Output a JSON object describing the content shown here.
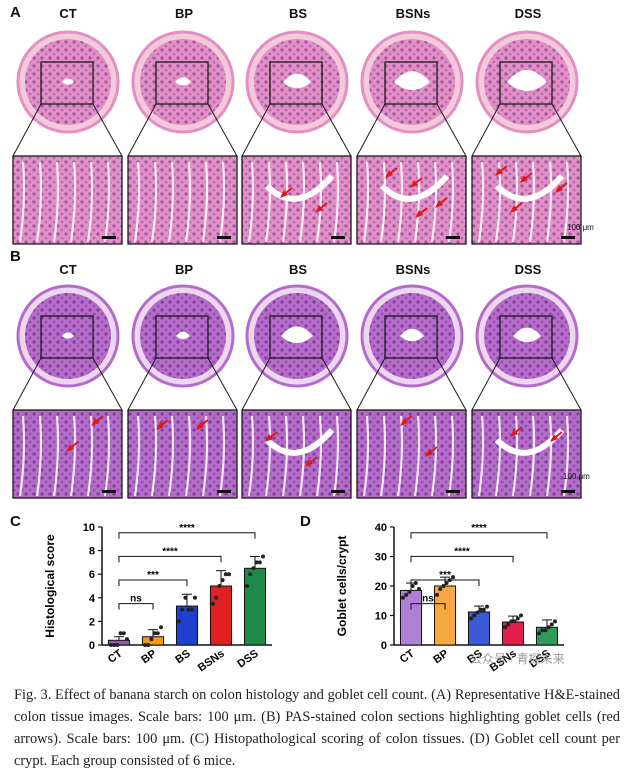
{
  "figure": {
    "panel_labels": [
      "A",
      "B",
      "C",
      "D"
    ],
    "groups": [
      "CT",
      "BP",
      "BS",
      "BSNs",
      "DSS"
    ],
    "scale_label": "100 μm",
    "colors": {
      "he_bg": "#f3c9dc",
      "he_tissue": "#e38fc4",
      "he_dark": "#7b3fa0",
      "pas_bg": "#ecd7ee",
      "pas_tissue": "#b46bc9",
      "pas_dark": "#6d2c86",
      "arrow": "#e01818",
      "zoom_frame": "#1a1a1a"
    }
  },
  "watermark": "公众号 · 青探未来",
  "caption": {
    "text": "Fig. 3. Effect of banana starch on colon histology and goblet cell count. (A) Representative H&E-stained colon tissue images. Scale bars: 100 μm. (B) PAS-stained colon sections highlighting goblet cells (red arrows). Scale bars: 100 μm. (C) Histopathological scoring of colon tissues. (D) Goblet cell count per crypt. Each group consisted of 6 mice."
  },
  "chart_data": [
    {
      "type": "bar",
      "panel": "C",
      "ylabel": "Histological score",
      "categories": [
        "CT",
        "BP",
        "BS",
        "BSNs",
        "DSS"
      ],
      "values": [
        0.4,
        0.7,
        3.3,
        5.0,
        6.5
      ],
      "errors": [
        0.3,
        0.6,
        1.0,
        1.3,
        1.0
      ],
      "bar_colors": [
        "#9b59b6",
        "#f39c12",
        "#1f3fcf",
        "#e02020",
        "#1e8a4a"
      ],
      "points": [
        [
          0,
          0,
          0,
          1,
          1,
          0.5
        ],
        [
          0,
          0,
          0.5,
          1,
          1,
          1.5
        ],
        [
          2,
          3,
          4,
          3,
          3,
          4
        ],
        [
          3.5,
          4,
          5,
          5.5,
          6,
          6
        ],
        [
          5,
          6,
          6.5,
          7,
          7,
          7.5
        ]
      ],
      "ylim": [
        0,
        10
      ],
      "yticks": [
        0,
        2,
        4,
        6,
        8,
        10
      ],
      "significance": [
        {
          "from": "CT",
          "to": "BP",
          "label": "ns"
        },
        {
          "from": "CT",
          "to": "BS",
          "label": "***"
        },
        {
          "from": "CT",
          "to": "BSNs",
          "label": "****"
        },
        {
          "from": "CT",
          "to": "DSS",
          "label": "****"
        }
      ]
    },
    {
      "type": "bar",
      "panel": "D",
      "ylabel": "Goblet cells/crypt",
      "categories": [
        "CT",
        "BP",
        "BS",
        "BSNs",
        "DSS"
      ],
      "values": [
        18.5,
        20.0,
        11.2,
        7.8,
        6.0
      ],
      "errors": [
        2.5,
        3.0,
        2.0,
        2.0,
        2.5
      ],
      "bar_colors": [
        "#b07fd6",
        "#f5a742",
        "#3c5ad8",
        "#e0204a",
        "#2e9a5e"
      ],
      "points": [
        [
          16,
          17,
          18,
          20,
          21,
          19
        ],
        [
          17,
          19,
          20,
          21,
          22,
          23
        ],
        [
          9,
          10,
          11,
          12,
          12,
          13
        ],
        [
          6,
          7,
          8,
          8,
          9,
          10
        ],
        [
          4,
          5,
          5,
          6,
          7,
          8
        ]
      ],
      "ylim": [
        0,
        40
      ],
      "yticks": [
        0,
        10,
        20,
        30,
        40
      ],
      "significance": [
        {
          "from": "CT",
          "to": "BP",
          "label": "ns"
        },
        {
          "from": "CT",
          "to": "BS",
          "label": "***"
        },
        {
          "from": "CT",
          "to": "BSNs",
          "label": "****"
        },
        {
          "from": "CT",
          "to": "DSS",
          "label": "****"
        }
      ]
    }
  ]
}
